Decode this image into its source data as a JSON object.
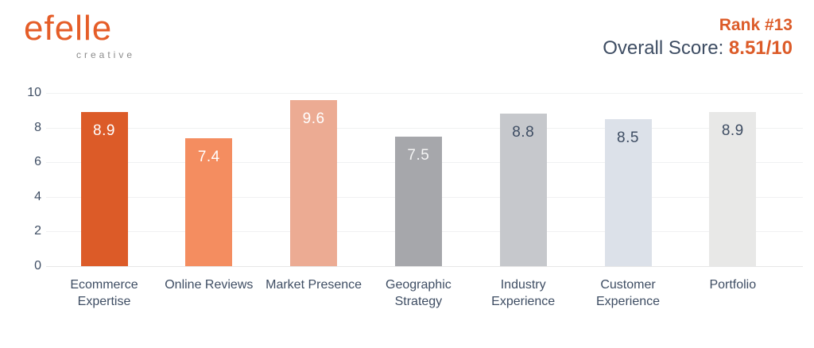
{
  "logo": {
    "brand": "efelle",
    "tagline": "creative"
  },
  "header": {
    "rank_label": "Rank #13",
    "score_label": "Overall Score: ",
    "score_value": "8.51/10"
  },
  "colors": {
    "accent_orange": "#DC5B28",
    "text_navy": "#3E4D63",
    "gridline": "#F0F1F2",
    "baseline": "#E7E7E7",
    "logo_gray": "#8B8B8B"
  },
  "chart_data": {
    "type": "bar",
    "title": "",
    "categories": [
      "Ecommerce Expertise",
      "Online Reviews",
      "Market Presence",
      "Geographic Strategy",
      "Industry Experience",
      "Customer Experience",
      "Portfolio"
    ],
    "values": [
      8.9,
      7.4,
      9.6,
      7.5,
      8.8,
      8.5,
      8.9
    ],
    "value_labels": [
      "8.9",
      "7.4",
      "9.6",
      "7.5",
      "8.8",
      "8.5",
      "8.9"
    ],
    "bar_colors": [
      "#DC5B28",
      "#F48D60",
      "#ECAB93",
      "#A6A7AB",
      "#C6C8CC",
      "#DCE1E9",
      "#E8E8E7"
    ],
    "value_label_colors": [
      "#FFFFFF",
      "#FFFFFF",
      "#FFFFFF",
      "#F5F5F5",
      "#3E4D63",
      "#3E4D63",
      "#3E4D63"
    ],
    "xlabel": "",
    "ylabel": "",
    "ylim": [
      0,
      10
    ],
    "yticks": [
      0,
      2,
      4,
      6,
      8,
      10
    ],
    "legend": "none",
    "grid": "horizontal"
  }
}
